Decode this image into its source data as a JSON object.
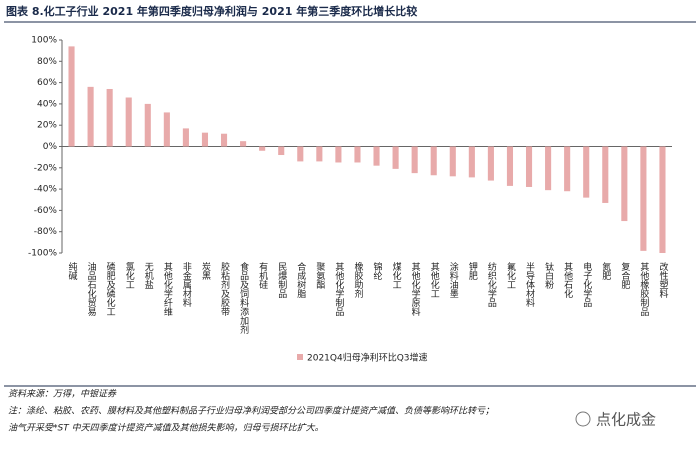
{
  "chart_data": {
    "type": "bar",
    "title": "图表 8.化工子行业 2021 年第四季度归母净利润与 2021 年第三季度环比增长比较",
    "categories": [
      "纯碱",
      "油品石化贸易",
      "磷肥及磷化工",
      "氯化工",
      "无机盐",
      "其他化学纤维",
      "非金属材料",
      "炭黑",
      "胶粘剂及胶带",
      "食品及饲料添加剂",
      "有机硅",
      "民爆制品",
      "合成树脂",
      "聚氨酯",
      "其他化学制品",
      "橡胶助剂",
      "锦纶",
      "煤化工",
      "其他化学原料",
      "其他化工",
      "涂料油墨",
      "钾肥",
      "纺织化学品",
      "氟化工",
      "半导体材料",
      "钛白粉",
      "其他石化",
      "电子化学品",
      "氮肥",
      "复合肥",
      "其他橡胶制品",
      "改性塑料"
    ],
    "series": [
      {
        "name": "2021Q4归母净利环比Q3增速",
        "color": "#e8aaaa",
        "values": [
          94,
          56,
          54,
          46,
          40,
          32,
          17,
          13,
          12,
          5,
          -4,
          -8,
          -14,
          -14,
          -15,
          -15,
          -18,
          -21,
          -25,
          -27,
          -28,
          -29,
          -32,
          -37,
          -38,
          -41,
          -42,
          -48,
          -53,
          -70,
          -98,
          -100
        ]
      }
    ],
    "ylim": [
      -100,
      100
    ],
    "yticks": [
      {
        "value": 100,
        "label": "100%"
      },
      {
        "value": 80,
        "label": "80%"
      },
      {
        "value": 60,
        "label": "60%"
      },
      {
        "value": 40,
        "label": "40%"
      },
      {
        "value": 20,
        "label": "20%"
      },
      {
        "value": 0,
        "label": "0%"
      },
      {
        "value": -20,
        "label": "-20%"
      },
      {
        "value": -40,
        "label": "-40%"
      },
      {
        "value": -60,
        "label": "-60%"
      },
      {
        "value": -80,
        "label": "-80%"
      },
      {
        "value": -100,
        "label": "-100%"
      }
    ],
    "grid": false
  },
  "footer": {
    "source": "资料来源：万得，中银证券",
    "notes": [
      "注：涤纶、粘胶、农药、膜材料及其他塑料制品子行业归母净利润受部分公司四季度计提资产减值、负债等影响环比转亏；",
      "油气开采受*ST 中天四季度计提资产减值及其他损失影响，归母亏损环比扩大。"
    ]
  },
  "watermark": "点化成金"
}
